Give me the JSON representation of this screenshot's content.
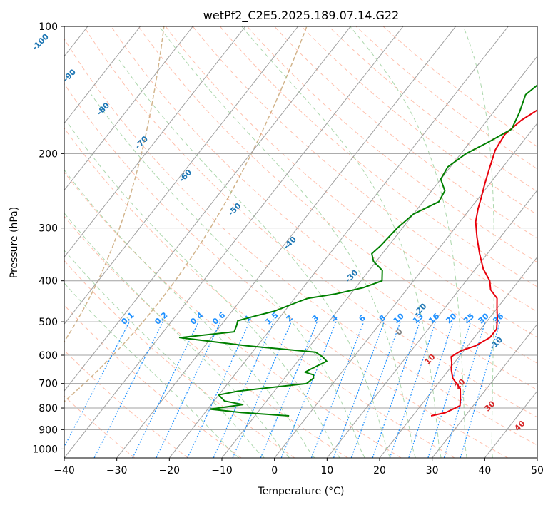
{
  "chart_data": {
    "type": "line",
    "subtype": "skew-t log-p diagram",
    "title": "wetPf2_C2E5.2025.189.07.14.G22",
    "xlabel": "Temperature (°C)",
    "ylabel": "Pressure (hPa)",
    "xlim": [
      -40,
      50
    ],
    "ylim": [
      1050,
      100
    ],
    "y_scale": "log",
    "x_ticks": [
      -40,
      -30,
      -20,
      -10,
      0,
      10,
      20,
      30,
      40,
      50
    ],
    "x_tick_labels": [
      "−40",
      "−30",
      "−20",
      "−10",
      "0",
      "10",
      "20",
      "30",
      "40",
      "50"
    ],
    "y_ticks": [
      1000,
      900,
      800,
      700,
      600,
      500,
      400,
      300,
      200,
      100
    ],
    "y_tick_labels": [
      "1000",
      "900",
      "800",
      "700",
      "600",
      "500",
      "400",
      "300",
      "200",
      "100"
    ],
    "grid": true,
    "series": [
      {
        "color": "#e8000b",
        "points": [
          [
            23.5,
            835
          ],
          [
            25.8,
            820
          ],
          [
            27.5,
            790
          ],
          [
            26.5,
            760
          ],
          [
            25,
            720
          ],
          [
            22,
            680
          ],
          [
            20.5,
            650
          ],
          [
            19.5,
            625
          ],
          [
            18.5,
            605
          ],
          [
            19.5,
            585
          ],
          [
            21.5,
            570
          ],
          [
            23,
            545
          ],
          [
            23,
            520
          ],
          [
            21.5,
            490
          ],
          [
            20,
            465
          ],
          [
            18.5,
            440
          ],
          [
            16,
            420
          ],
          [
            14.5,
            400
          ],
          [
            11.5,
            375
          ],
          [
            8.5,
            345
          ],
          [
            5.5,
            315
          ],
          [
            3,
            290
          ],
          [
            1.5,
            270
          ],
          [
            0.5,
            255
          ],
          [
            -1,
            235
          ],
          [
            -2.5,
            215
          ],
          [
            -4,
            196
          ],
          [
            -4.5,
            180
          ],
          [
            -3.5,
            167
          ],
          [
            -1.5,
            155
          ],
          [
            -1,
            142
          ],
          [
            -1.5,
            128
          ],
          [
            -1.5,
            114
          ],
          [
            -0.5,
            104
          ],
          [
            0,
            100
          ]
        ]
      },
      {
        "color": "#008000",
        "points": [
          [
            -3.5,
            835
          ],
          [
            -13,
            820
          ],
          [
            -19.5,
            805
          ],
          [
            -14,
            785
          ],
          [
            -18,
            770
          ],
          [
            -20,
            745
          ],
          [
            -17,
            730
          ],
          [
            -5,
            700
          ],
          [
            -4.5,
            680
          ],
          [
            -5,
            668
          ],
          [
            -7,
            658
          ],
          [
            -6,
            642
          ],
          [
            -4.5,
            620
          ],
          [
            -6,
            605
          ],
          [
            -8,
            590
          ],
          [
            -22,
            570
          ],
          [
            -36,
            545
          ],
          [
            -26.5,
            528
          ],
          [
            -27,
            510
          ],
          [
            -27.5,
            497
          ],
          [
            -25,
            485
          ],
          [
            -22,
            472
          ],
          [
            -19,
            450
          ],
          [
            -17.5,
            440
          ],
          [
            -13,
            430
          ],
          [
            -8.5,
            415
          ],
          [
            -6,
            400
          ],
          [
            -7.5,
            378
          ],
          [
            -10.5,
            360
          ],
          [
            -12,
            345
          ],
          [
            -11.5,
            330
          ],
          [
            -11,
            300
          ],
          [
            -10,
            278
          ],
          [
            -7,
            260
          ],
          [
            -7.5,
            245
          ],
          [
            -10,
            230
          ],
          [
            -10.5,
            215
          ],
          [
            -9,
            200
          ],
          [
            -6.5,
            188
          ],
          [
            -4,
            175
          ],
          [
            -5,
            160
          ],
          [
            -6.5,
            145
          ],
          [
            -5,
            132
          ],
          [
            -1.5,
            120
          ],
          [
            -0.5,
            110
          ],
          [
            0,
            104
          ],
          [
            0,
            100
          ]
        ]
      }
    ],
    "dry_adiabat_labels": [
      "-100",
      "-90",
      "-80",
      "-70",
      "-60",
      "-50",
      "-40",
      "-30",
      "-20",
      "-10",
      "0"
    ],
    "moist_adiabat_labels": [
      "10",
      "20",
      "30",
      "40"
    ],
    "mixing_ratio_labels": [
      "0.1",
      "0.2",
      "0.4",
      "0.6",
      "1",
      "1.5",
      "2",
      "3",
      "4",
      "6",
      "8",
      "10",
      "13",
      "16",
      "20",
      "25",
      "30",
      "36"
    ],
    "colors": {
      "isotherm": "#a0a0a0",
      "isobar": "#a0a0a0",
      "dry_adiabat": "#ff8c69",
      "moist_adiabat": "#90c990",
      "mixing_ratio": "#1e90ff",
      "theta_e_curve": "#d2b48c"
    }
  }
}
